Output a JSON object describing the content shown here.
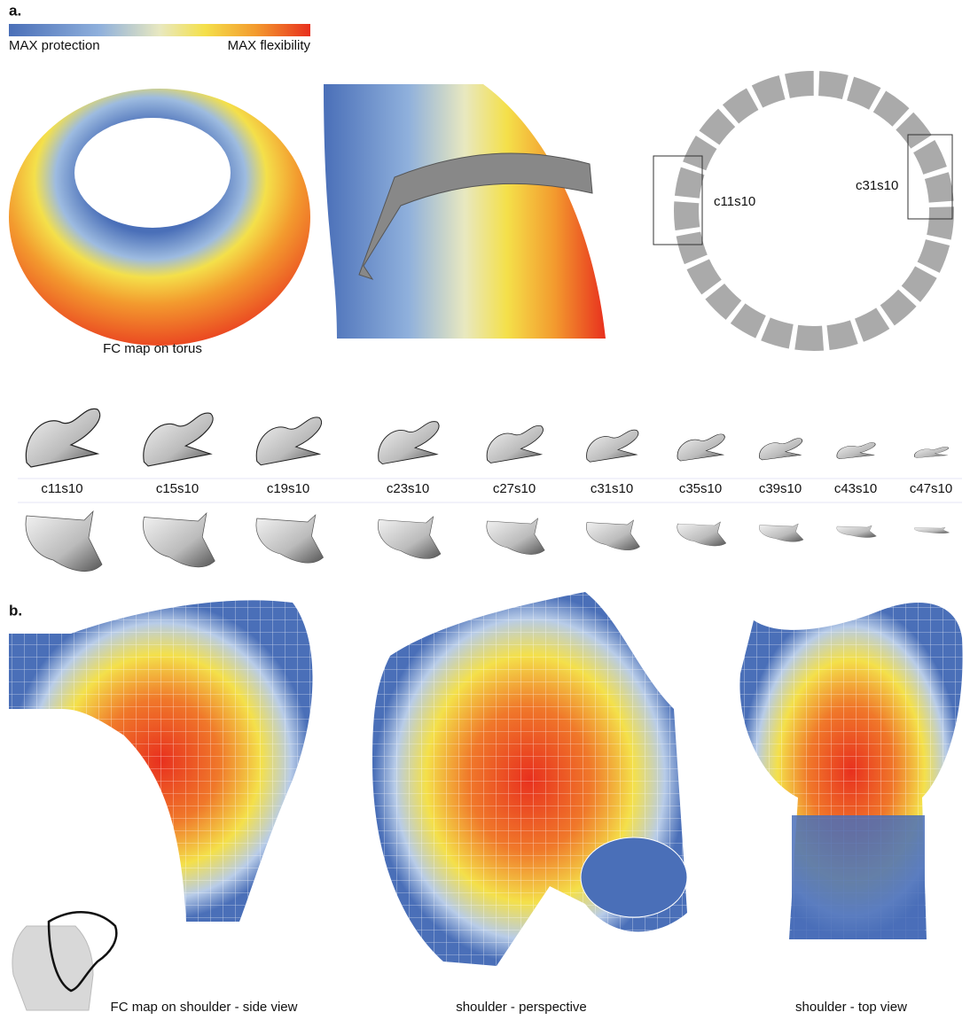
{
  "panel_a": {
    "label": "a.",
    "colorbar": {
      "min_label": "MAX protection",
      "max_label": "MAX flexibility"
    },
    "torus_caption": "FC map on torus",
    "ring_labels": [
      "c11s10",
      "c31s10"
    ],
    "unit_labels": [
      "c11s10",
      "c15s10",
      "c19s10",
      "c23s10",
      "c27s10",
      "c31s10",
      "c35s10",
      "c39s10",
      "c43s10",
      "c47s10"
    ]
  },
  "panel_b": {
    "label": "b.",
    "captions": [
      "FC map on shoulder - side view",
      "shoulder - perspective",
      "shoulder - top view"
    ]
  }
}
